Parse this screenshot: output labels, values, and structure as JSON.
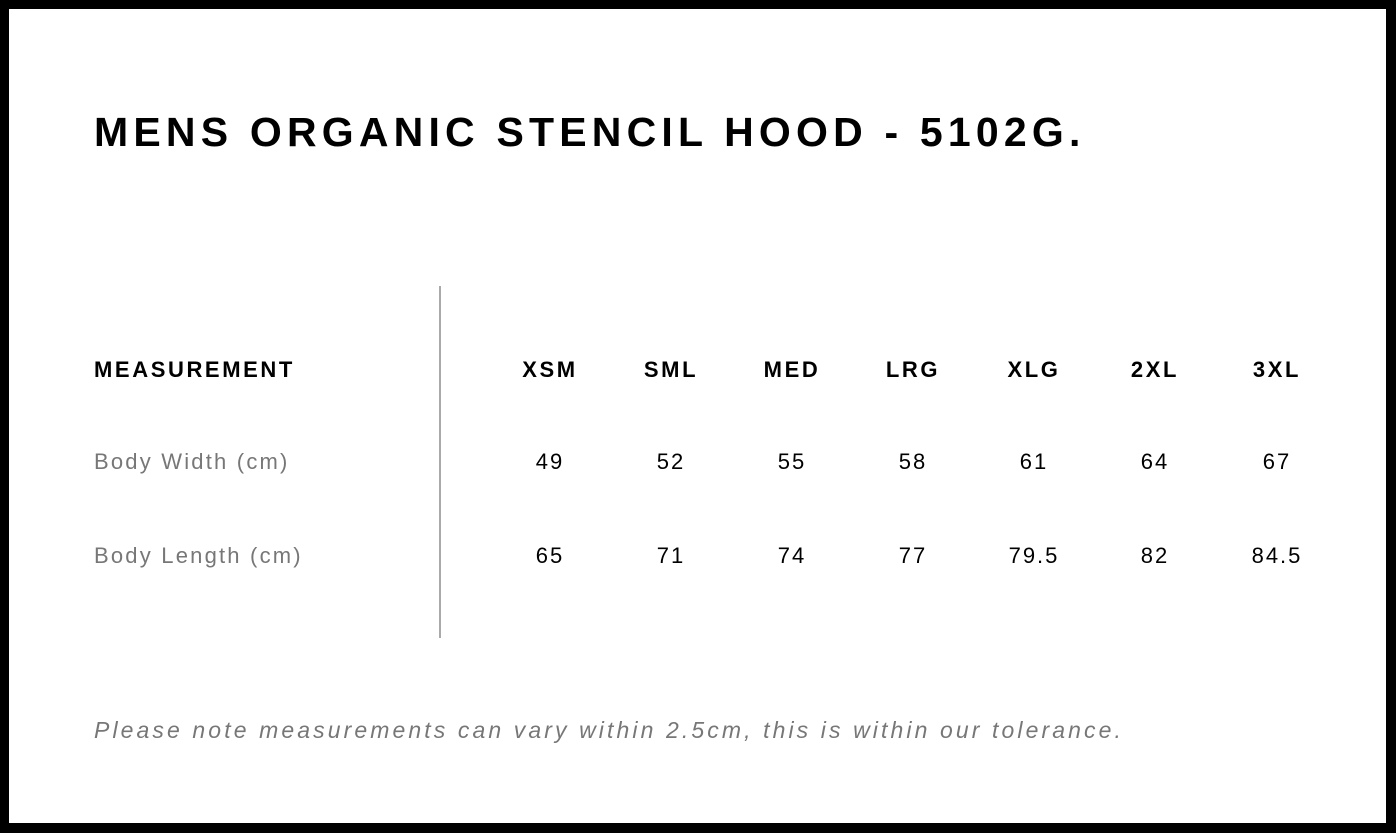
{
  "title": "MENS ORGANIC STENCIL HOOD - 5102G.",
  "table": {
    "header_label": "MEASUREMENT",
    "sizes": [
      "XSM",
      "SML",
      "MED",
      "LRG",
      "XLG",
      "2XL",
      "3XL"
    ],
    "rows": [
      {
        "label": "Body Width (cm)",
        "values": [
          "49",
          "52",
          "55",
          "58",
          "61",
          "64",
          "67"
        ]
      },
      {
        "label": "Body Length (cm)",
        "values": [
          "65",
          "71",
          "74",
          "77",
          "79.5",
          "82",
          "84.5"
        ]
      }
    ]
  },
  "note": "Please note measurements can vary within 2.5cm, this is within our tolerance.",
  "colors": {
    "border": "#000000",
    "label_gray": "#777777",
    "divider": "#aaaaaa"
  }
}
